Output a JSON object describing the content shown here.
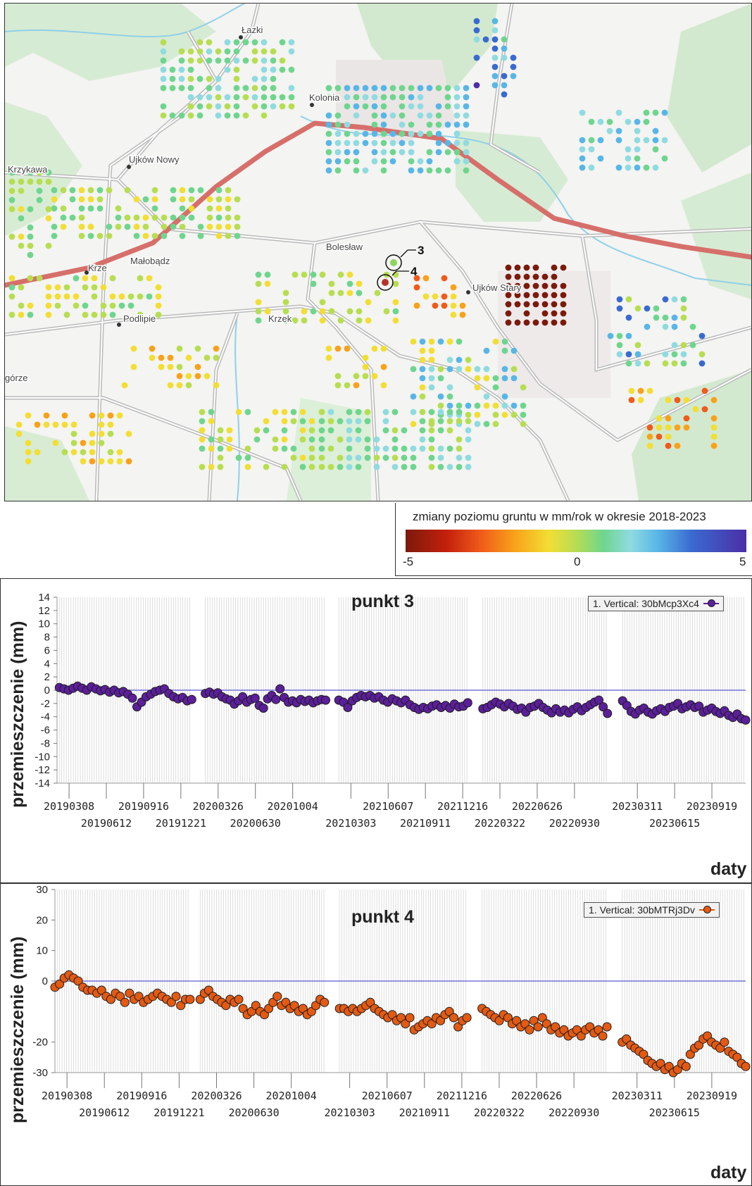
{
  "map": {
    "town_labels": [
      "Łazki",
      "Kolonia",
      "Ujków Nowy",
      "Krzykawa",
      "Krze",
      "Małobądz",
      "Bolesław",
      "Ujków Stary",
      "Podlipie",
      "Krzek",
      "górze"
    ],
    "point_markers": [
      {
        "label": "3",
        "color": "#8fd35c"
      },
      {
        "label": "4",
        "color": "#b5332b"
      }
    ],
    "dot_colors": [
      "#7b1a0c",
      "#c3200c",
      "#f05a1a",
      "#f8a21a",
      "#f2de34",
      "#b7dd52",
      "#6fd58e",
      "#8fdbe0",
      "#58b6e6",
      "#3a6ad0",
      "#4a2fa6"
    ]
  },
  "legend": {
    "title": "zmiany poziomu gruntu w mm/rok w okresie 2018-2023",
    "min_label": "-5",
    "mid_label": "0",
    "max_label": "5"
  },
  "chart_data": [
    {
      "type": "scatter",
      "title": "punkt 3",
      "xlabel": "daty",
      "ylabel": "przemieszczenie (mm)",
      "ylim": [
        -14,
        14
      ],
      "yticks": [
        14,
        12,
        10,
        8,
        6,
        4,
        2,
        0,
        -2,
        -4,
        -6,
        -8,
        -10,
        -12,
        -14
      ],
      "xlim": [
        "20190205",
        "20231215"
      ],
      "xticks_top": [
        "20190308",
        "20190916",
        "20200326",
        "20201004",
        "20210607",
        "20211216",
        "20220626",
        "20230311",
        "20230919"
      ],
      "xticks_bottom": [
        "20190612",
        "20191221",
        "20200630",
        "20210303",
        "20210911",
        "20220322",
        "20220930",
        "20230615"
      ],
      "legend": "1. Vertical: 30bMcp3Xc4",
      "series_color": "#5b1f9a",
      "series": [
        {
          "name": "1. Vertical: 30bMcp3Xc4",
          "segments": [
            {
              "start": "20190211",
              "end": "20200118",
              "values": [
                0.4,
                0.2,
                0.0,
                0.3,
                0.6,
                0.3,
                0.0,
                0.5,
                0.2,
                -0.1,
                0.1,
                -0.3,
                0.0,
                -0.4,
                -0.2,
                -0.6,
                -1.2,
                -2.5,
                -1.8,
                -1.0,
                -0.6,
                -0.2,
                0.0,
                0.2,
                -0.5,
                -1.0,
                -1.3,
                -1.1,
                -1.6,
                -1.4
              ]
            },
            {
              "start": "20200222",
              "end": "20201228",
              "values": [
                -0.5,
                -0.3,
                -0.6,
                -0.4,
                -1.0,
                -1.3,
                -1.5,
                -2.1,
                -1.6,
                -1.0,
                -1.8,
                -1.4,
                -1.2,
                -2.3,
                -2.7,
                -1.3,
                -0.8,
                -1.4,
                0.2,
                -1.1,
                -1.8,
                -1.6,
                -1.9,
                -1.4,
                -1.7,
                -1.5,
                -1.9,
                -1.6,
                -1.4,
                -1.5
              ]
            },
            {
              "start": "20210131",
              "end": "20211229",
              "values": [
                -1.5,
                -1.8,
                -2.6,
                -1.6,
                -1.1,
                -0.8,
                -1.0,
                -0.8,
                -1.2,
                -1.0,
                -1.5,
                -1.8,
                -1.3,
                -1.6,
                -1.9,
                -1.5,
                -2.2,
                -2.6,
                -2.9,
                -2.6,
                -2.8,
                -2.4,
                -2.2,
                -2.6,
                -2.3,
                -2.7,
                -2.1,
                -2.5,
                -2.4,
                -1.9
              ]
            },
            {
              "start": "20220206",
              "end": "20221224",
              "values": [
                -2.8,
                -2.6,
                -2.2,
                -1.8,
                -2.1,
                -2.5,
                -2.0,
                -2.4,
                -2.9,
                -2.7,
                -3.3,
                -2.6,
                -2.4,
                -2.0,
                -2.6,
                -3.0,
                -3.4,
                -2.8,
                -3.3,
                -3.0,
                -3.4,
                -2.9,
                -2.5,
                -3.1,
                -2.6,
                -2.2,
                -1.8,
                -1.5,
                -2.5,
                -3.5
              ]
            },
            {
              "start": "20230201",
              "end": "20231215",
              "values": [
                -1.6,
                -2.3,
                -3.2,
                -3.6,
                -3.0,
                -2.7,
                -3.3,
                -3.6,
                -3.1,
                -2.8,
                -3.2,
                -2.6,
                -2.4,
                -2.0,
                -2.8,
                -2.5,
                -2.2,
                -2.6,
                -2.4,
                -3.3,
                -3.0,
                -2.7,
                -3.2,
                -3.5,
                -3.1,
                -3.8,
                -4.1,
                -3.6,
                -4.3,
                -4.5
              ]
            }
          ]
        }
      ]
    },
    {
      "type": "scatter",
      "title": "punkt 4",
      "xlabel": "daty",
      "ylabel": "przemieszczenie (mm)",
      "ylim": [
        -30,
        30
      ],
      "yticks": [
        30,
        20,
        10,
        0,
        -20,
        -30
      ],
      "xlim": [
        "20190205",
        "20231215"
      ],
      "xticks_top": [
        "20190308",
        "20190916",
        "20200326",
        "20201004",
        "20210607",
        "20211216",
        "20220626",
        "20230311",
        "20230919"
      ],
      "xticks_bottom": [
        "20190612",
        "20191221",
        "20200630",
        "20210303",
        "20210911",
        "20220322",
        "20220930",
        "20230615"
      ],
      "legend": "1. Vertical: 30bMTRj3Dv",
      "series_color": "#e35a12",
      "series": [
        {
          "name": "1. Vertical: 30bMTRj3Dv",
          "segments": [
            {
              "start": "20190205",
              "end": "20200118",
              "values": [
                -2,
                -1,
                1,
                2,
                1,
                0,
                -2,
                -3,
                -3,
                -4,
                -3,
                -5,
                -6,
                -4,
                -5,
                -7,
                -4,
                -6,
                -5,
                -7,
                -6,
                -5,
                -4,
                -5,
                -6,
                -7,
                -5,
                -8,
                -6,
                -6
              ]
            },
            {
              "start": "20200213",
              "end": "20201228",
              "values": [
                -6,
                -4,
                -3,
                -5,
                -6,
                -7,
                -8,
                -6,
                -7,
                -6,
                -9,
                -11,
                -10,
                -8,
                -10,
                -11,
                -9,
                -7,
                -5,
                -8,
                -7,
                -9,
                -8,
                -10,
                -9,
                -11,
                -10,
                -8,
                -6,
                -7
              ]
            },
            {
              "start": "20210205",
              "end": "20211229",
              "values": [
                -9,
                -9,
                -10,
                -9,
                -10,
                -9,
                -8,
                -7,
                -9,
                -10,
                -11,
                -12,
                -11,
                -13,
                -12,
                -14,
                -12,
                -16,
                -15,
                -14,
                -13,
                -14,
                -12,
                -13,
                -11,
                -10,
                -12,
                -15,
                -13,
                -12
              ]
            },
            {
              "start": "20220206",
              "end": "20221224",
              "values": [
                -9,
                -10,
                -11,
                -12,
                -13,
                -11,
                -12,
                -14,
                -13,
                -15,
                -14,
                -16,
                -13,
                -15,
                -12,
                -14,
                -16,
                -15,
                -17,
                -16,
                -18,
                -17,
                -16,
                -18,
                -16,
                -15,
                -17,
                -16,
                -18,
                -15
              ]
            },
            {
              "start": "20230201",
              "end": "20231215",
              "values": [
                -20,
                -19,
                -21,
                -22,
                -23,
                -24,
                -26,
                -27,
                -28,
                -27,
                -29,
                -28,
                -30,
                -29,
                -27,
                -28,
                -24,
                -22,
                -21,
                -19,
                -18,
                -20,
                -21,
                -22,
                -20,
                -23,
                -24,
                -25,
                -27,
                -28
              ]
            }
          ]
        }
      ]
    }
  ]
}
